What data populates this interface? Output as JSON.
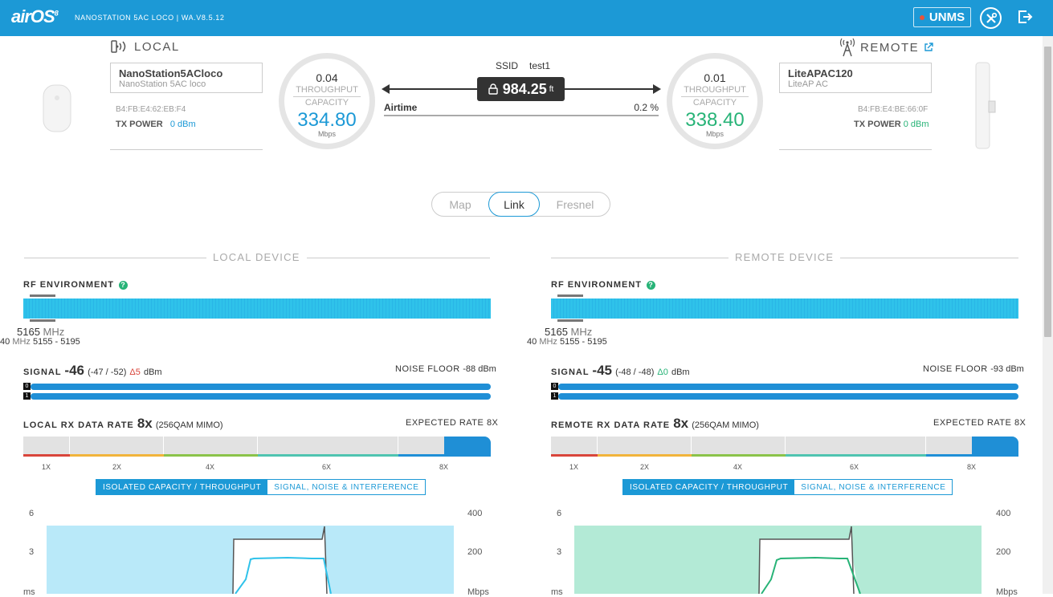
{
  "header": {
    "logo": "airOS",
    "logo_ver": "8",
    "device_line": "NANOSTATION 5AC LOCO | WA.V8.5.12",
    "unms_label": "UNMS"
  },
  "local": {
    "title": "LOCAL",
    "name": "NanoStation5ACloco",
    "model": "NanoStation 5AC loco",
    "mac": "B4:FB:E4:62:EB:F4",
    "tx_label": "TX POWER",
    "tx_value": "0 dBm"
  },
  "remote": {
    "title": "REMOTE",
    "name": "LiteAPAC120",
    "model": "LiteAP AC",
    "mac": "B4:FB:E4:BE:66:0F",
    "tx_label": "TX POWER",
    "tx_value": "0 dBm"
  },
  "local_ring": {
    "throughput": "0.04",
    "label1": "THROUGHPUT",
    "label2": "CAPACITY",
    "capacity": "334.80",
    "unit": "Mbps",
    "color": "#1c99d6"
  },
  "remote_ring": {
    "throughput": "0.01",
    "label1": "THROUGHPUT",
    "label2": "CAPACITY",
    "capacity": "338.40",
    "unit": "Mbps",
    "color": "#27b377"
  },
  "link": {
    "ssid_label": "SSID",
    "ssid": "test1",
    "distance": "984.25",
    "distance_unit": "ft",
    "airtime_label": "Airtime",
    "airtime_value": "0.2 %"
  },
  "tabs": [
    {
      "label": "Map"
    },
    {
      "label": "Link"
    },
    {
      "label": "Fresnel"
    }
  ],
  "local_panel": {
    "title": "LOCAL DEVICE",
    "rf_label": "RF ENVIRONMENT",
    "freq": "5165",
    "freq_unit": "MHz",
    "width": "40",
    "width_unit": "MHz",
    "range": "5155 - 5195",
    "signal_label": "SIGNAL",
    "signal": "-46",
    "signal_chains": "(-47 / -52)",
    "delta": "Δ5",
    "delta_color": "#d9453b",
    "signal_unit": "dBm",
    "noise_label": "NOISE FLOOR",
    "noise": "-88 dBm",
    "chain0": "0",
    "chain1": "1",
    "rate_label": "LOCAL RX DATA RATE",
    "rate": "8x",
    "rate_mod": "(256QAM MIMO)",
    "expected_label": "EXPECTED RATE",
    "expected": "8X",
    "rate_ticks": [
      "1X",
      "2X",
      "4X",
      "6X",
      "8X"
    ],
    "toggle_on": "ISOLATED CAPACITY / THROUGHPUT",
    "toggle_off": "SIGNAL, NOISE & INTERFERENCE",
    "axis_left": [
      "6",
      "3",
      "ms"
    ],
    "axis_right": [
      "400",
      "200",
      "Mbps"
    ],
    "fill_color": "#b9e9f9",
    "line_color": "#2fc2ea"
  },
  "remote_panel": {
    "title": "REMOTE DEVICE",
    "rf_label": "RF ENVIRONMENT",
    "freq": "5165",
    "freq_unit": "MHz",
    "width": "40",
    "width_unit": "MHz",
    "range": "5155 - 5195",
    "signal_label": "SIGNAL",
    "signal": "-45",
    "signal_chains": "(-48 / -48)",
    "delta": "Δ0",
    "delta_color": "#27b377",
    "signal_unit": "dBm",
    "noise_label": "NOISE FLOOR",
    "noise": "-93 dBm",
    "chain0": "0",
    "chain1": "1",
    "rate_label": "REMOTE RX DATA RATE",
    "rate": "8x",
    "rate_mod": "(256QAM MIMO)",
    "expected_label": "EXPECTED RATE",
    "expected": "8X",
    "rate_ticks": [
      "1X",
      "2X",
      "4X",
      "6X",
      "8X"
    ],
    "toggle_on": "ISOLATED CAPACITY / THROUGHPUT",
    "toggle_off": "SIGNAL, NOISE & INTERFERENCE",
    "axis_left": [
      "6",
      "3",
      "ms"
    ],
    "axis_right": [
      "400",
      "200",
      "Mbps"
    ],
    "fill_color": "#b3ead6",
    "line_color": "#27b377"
  },
  "icons": {
    "local": "broadcast-icon",
    "remote": "antenna-tower-icon",
    "external": "external-link-icon",
    "lock": "lock-icon",
    "tools": "tools-icon",
    "logout": "logout-icon",
    "help": "help-icon"
  }
}
